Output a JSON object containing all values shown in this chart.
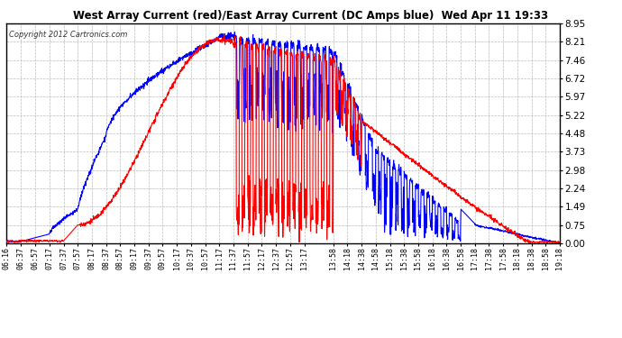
{
  "title": "West Array Current (red)/East Array Current (DC Amps blue)  Wed Apr 11 19:33",
  "copyright": "Copyright 2012 Cartronics.com",
  "background_color": "#ffffff",
  "plot_bg_color": "#ffffff",
  "grid_color": "#bbbbbb",
  "ylim": [
    0.0,
    8.95
  ],
  "yticks": [
    0.0,
    0.75,
    1.49,
    2.24,
    2.98,
    3.73,
    4.48,
    5.22,
    5.97,
    6.72,
    7.46,
    8.21,
    8.95
  ],
  "xtick_labels": [
    "06:16",
    "06:37",
    "06:57",
    "07:17",
    "07:37",
    "07:57",
    "08:17",
    "08:37",
    "08:57",
    "09:17",
    "09:37",
    "09:57",
    "10:17",
    "10:37",
    "10:57",
    "11:17",
    "11:37",
    "11:57",
    "12:17",
    "12:37",
    "12:57",
    "13:17",
    "13:58",
    "14:18",
    "14:38",
    "14:58",
    "15:18",
    "15:38",
    "15:58",
    "16:18",
    "16:38",
    "16:58",
    "17:18",
    "17:38",
    "17:58",
    "18:18",
    "18:38",
    "18:58",
    "19:18"
  ],
  "red_color": "#ff0000",
  "blue_color": "#0000ff",
  "line_width": 0.8
}
